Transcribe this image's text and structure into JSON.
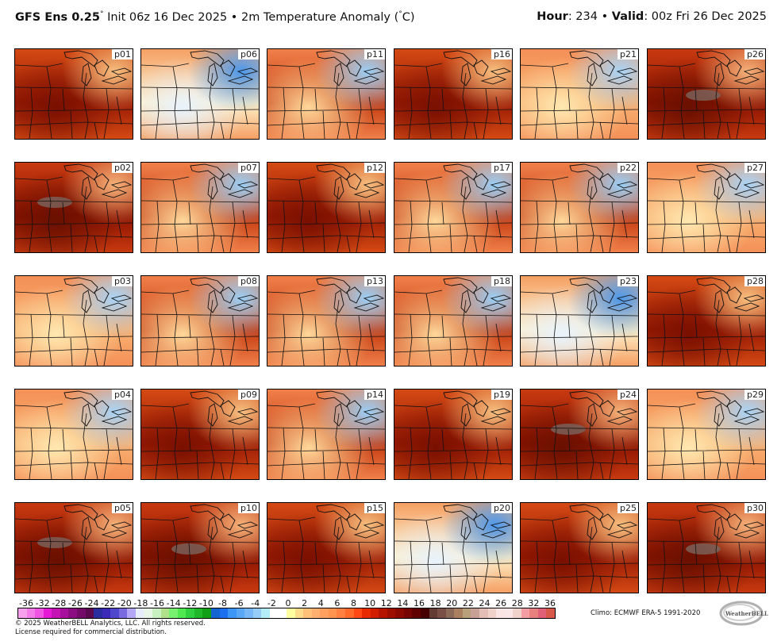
{
  "header": {
    "model": "GFS Ens 0.25",
    "init": "Init 06z 16 Dec 2025",
    "bullet": "•",
    "field": "2m Temperature Anomaly (",
    "unit_close": "C)",
    "hour_label": "Hour",
    "hour_value": ": 234",
    "valid_label": "Valid",
    "valid_value": ": 00z Fri 26 Dec 2025"
  },
  "panels": [
    {
      "label": "p01",
      "style": "hot"
    },
    {
      "label": "p06",
      "style": "cool"
    },
    {
      "label": "p11",
      "style": "warm"
    },
    {
      "label": "p16",
      "style": "hot"
    },
    {
      "label": "p21",
      "style": "mild"
    },
    {
      "label": "p26",
      "style": "extreme"
    },
    {
      "label": "p02",
      "style": "extreme"
    },
    {
      "label": "p07",
      "style": "warm"
    },
    {
      "label": "p12",
      "style": "hot"
    },
    {
      "label": "p17",
      "style": "warm"
    },
    {
      "label": "p22",
      "style": "warm"
    },
    {
      "label": "p27",
      "style": "mild"
    },
    {
      "label": "p03",
      "style": "mild"
    },
    {
      "label": "p08",
      "style": "warm"
    },
    {
      "label": "p13",
      "style": "warm"
    },
    {
      "label": "p18",
      "style": "warm"
    },
    {
      "label": "p23",
      "style": "cool"
    },
    {
      "label": "p28",
      "style": "hot"
    },
    {
      "label": "p04",
      "style": "mild"
    },
    {
      "label": "p09",
      "style": "hot"
    },
    {
      "label": "p14",
      "style": "warm"
    },
    {
      "label": "p19",
      "style": "hot"
    },
    {
      "label": "p24",
      "style": "extreme"
    },
    {
      "label": "p29",
      "style": "mild"
    },
    {
      "label": "p05",
      "style": "extreme"
    },
    {
      "label": "p10",
      "style": "extreme"
    },
    {
      "label": "p15",
      "style": "hot"
    },
    {
      "label": "p20",
      "style": "cool"
    },
    {
      "label": "p25",
      "style": "hot"
    },
    {
      "label": "p30",
      "style": "extreme"
    }
  ],
  "colorbar": {
    "labels": [
      "-36",
      "-32",
      "-28",
      "-26",
      "-24",
      "-22",
      "-20",
      "-18",
      "-16",
      "-14",
      "-12",
      "-10",
      "-8",
      "-6",
      "-4",
      "-2",
      "0",
      "2",
      "4",
      "6",
      "8",
      "10",
      "12",
      "14",
      "16",
      "18",
      "20",
      "22",
      "24",
      "26",
      "28",
      "32",
      "36"
    ],
    "colors": [
      "#f7a0ee",
      "#f47ce8",
      "#ef55e0",
      "#e619d6",
      "#c414b4",
      "#a80f9c",
      "#8c0c82",
      "#730b68",
      "#5c0a50",
      "#2a2e9e",
      "#3e2ab8",
      "#5048cc",
      "#7a6ae0",
      "#b4a8f6",
      "#e6ecfa",
      "#e8f6e8",
      "#c8f0c0",
      "#b0e08a",
      "#78f070",
      "#50e850",
      "#30d040",
      "#20b828",
      "#12a018",
      "#1464d2",
      "#1e6ef0",
      "#3c96f5",
      "#5aa8f5",
      "#78b8f8",
      "#96ccf8",
      "#b4ecf8",
      "#ffffff",
      "#ffffff",
      "#ffffa0",
      "#ffdc8c",
      "#ffc078",
      "#ffb070",
      "#ffa060",
      "#ff9450",
      "#ff8040",
      "#ff6a2a",
      "#ff4814",
      "#e82a00",
      "#d21e00",
      "#b41400",
      "#9e0e00",
      "#8a0800",
      "#760400",
      "#600000",
      "#460000",
      "#643c34",
      "#7a5046",
      "#8c6a58",
      "#aa8060",
      "#b8a07a",
      "#c8a096",
      "#e4beb4",
      "#f0d2ca",
      "#fae4e4",
      "#fae6e6",
      "#f0d2ca",
      "#f49ea4",
      "#e8807e",
      "#e06078",
      "#d8584a"
    ]
  },
  "footer": {
    "copyright": "© 2025 WeatherBELL Analytics, LLC. All rights reserved.",
    "license": "License required for commercial distribution.",
    "climo": "Climo: ECMWF ERA-5 1991-2020",
    "logo_text": "WeatherBELL"
  }
}
